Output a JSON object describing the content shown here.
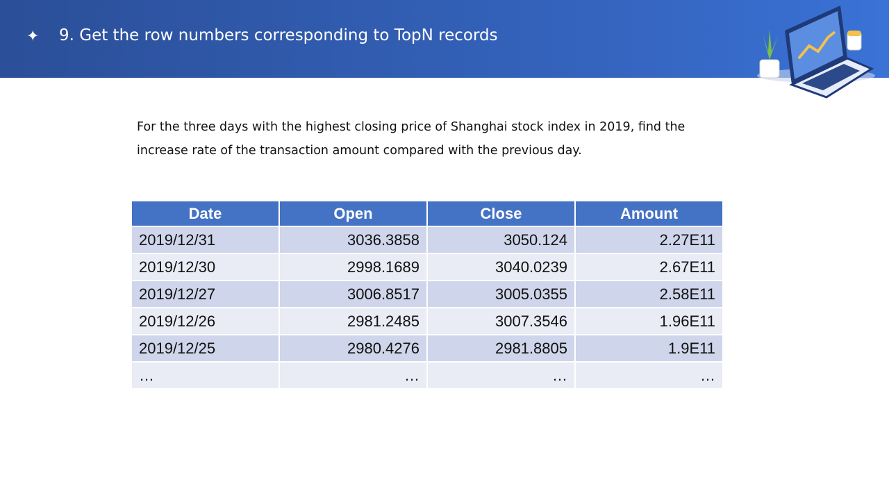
{
  "header": {
    "title": "9. Get the row numbers corresponding to TopN records"
  },
  "body": {
    "text": "For the three days with the highest closing price of Shanghai stock index in 2019, find the increase rate of the transaction amount compared with the previous day."
  },
  "table": {
    "columns": [
      "Date",
      "Open",
      "Close",
      "Amount"
    ],
    "rows": [
      [
        "2019/12/31",
        "3036.3858",
        "3050.124",
        "2.27E11"
      ],
      [
        "2019/12/30",
        "2998.1689",
        "3040.0239",
        "2.67E11"
      ],
      [
        "2019/12/27",
        "3006.8517",
        "3005.0355",
        "2.58E11"
      ],
      [
        "2019/12/26",
        "2981.2485",
        "3007.3546",
        "1.96E11"
      ],
      [
        "2019/12/25",
        "2980.4276",
        "2981.8805",
        "1.9E11"
      ],
      [
        "…",
        "…",
        "…",
        "…"
      ]
    ]
  }
}
